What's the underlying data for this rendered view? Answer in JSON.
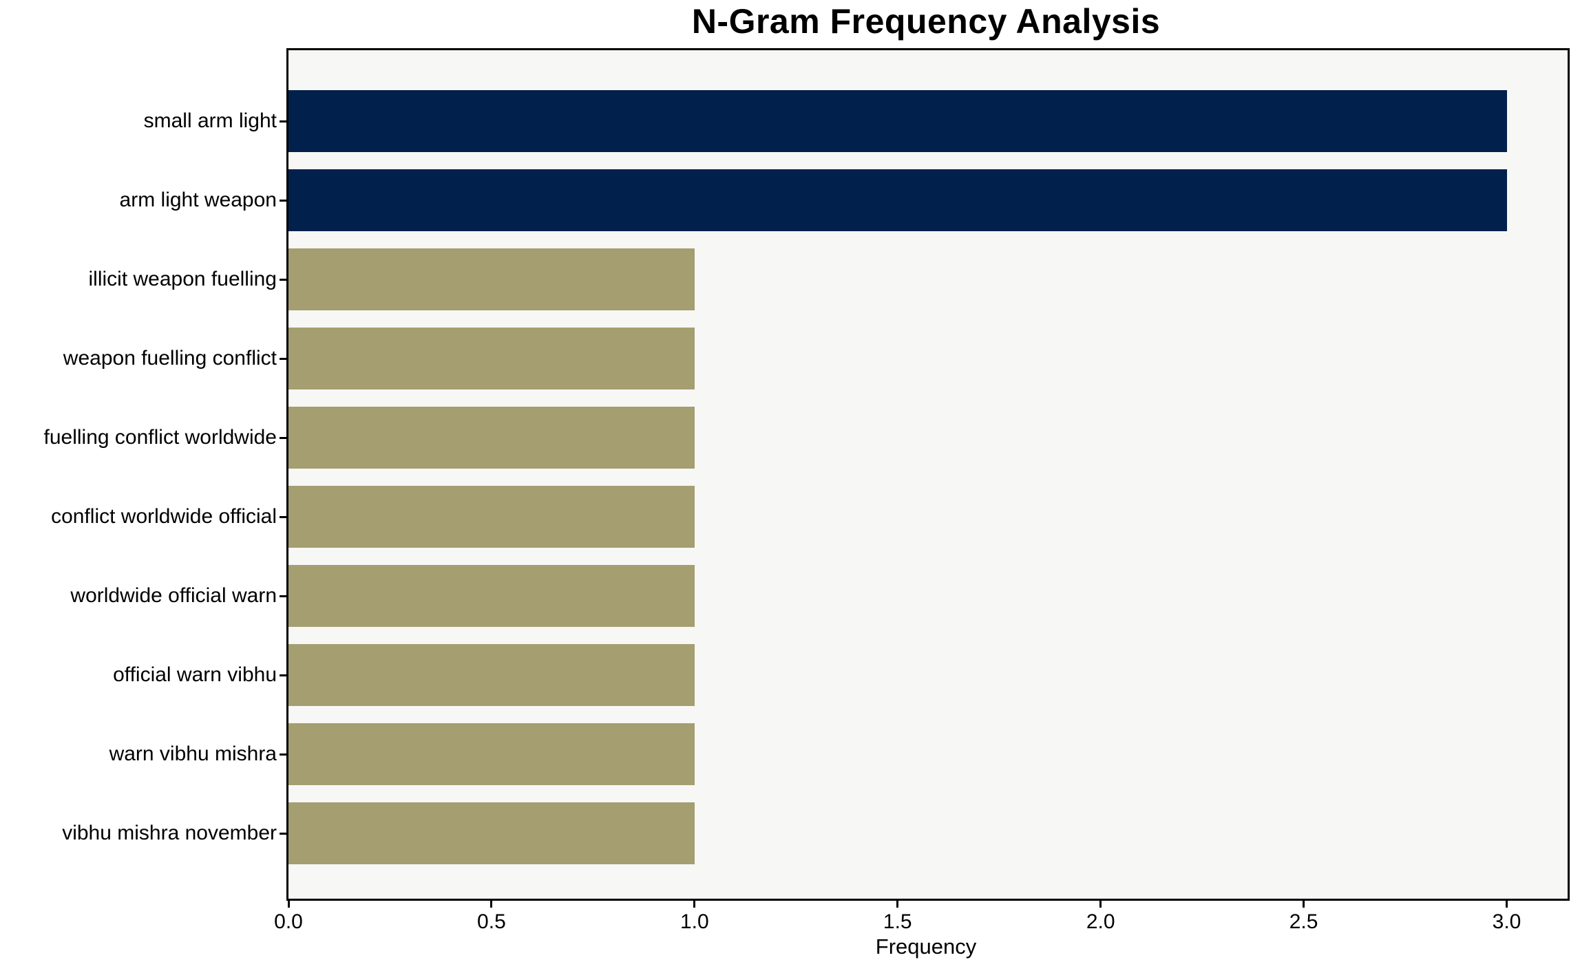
{
  "chart_data": {
    "type": "bar",
    "orientation": "horizontal",
    "title": "N-Gram Frequency Analysis",
    "xlabel": "Frequency",
    "ylabel": "",
    "categories": [
      "small arm light",
      "arm light weapon",
      "illicit weapon fuelling",
      "weapon fuelling conflict",
      "fuelling conflict worldwide",
      "conflict worldwide official",
      "worldwide official warn",
      "official warn vibhu",
      "warn vibhu mishra",
      "vibhu mishra november"
    ],
    "values": [
      3,
      3,
      1,
      1,
      1,
      1,
      1,
      1,
      1,
      1
    ],
    "bar_colors": [
      "#01214C",
      "#01214C",
      "#A49E71",
      "#A49E71",
      "#A49E71",
      "#A49E71",
      "#A49E71",
      "#A49E71",
      "#A49E71",
      "#A49E71"
    ],
    "xticks": [
      "0.0",
      "0.5",
      "1.0",
      "1.5",
      "2.0",
      "2.5",
      "3.0"
    ],
    "xlim": [
      0,
      3.15
    ],
    "grid": false,
    "legend_position": "none",
    "colors": {
      "high_bar": "#01214C",
      "low_bar": "#A49E71",
      "plot_background": "#F7F7F6",
      "figure_background": "#FFFFFF",
      "axis": "#000000",
      "text": "#000000"
    }
  }
}
